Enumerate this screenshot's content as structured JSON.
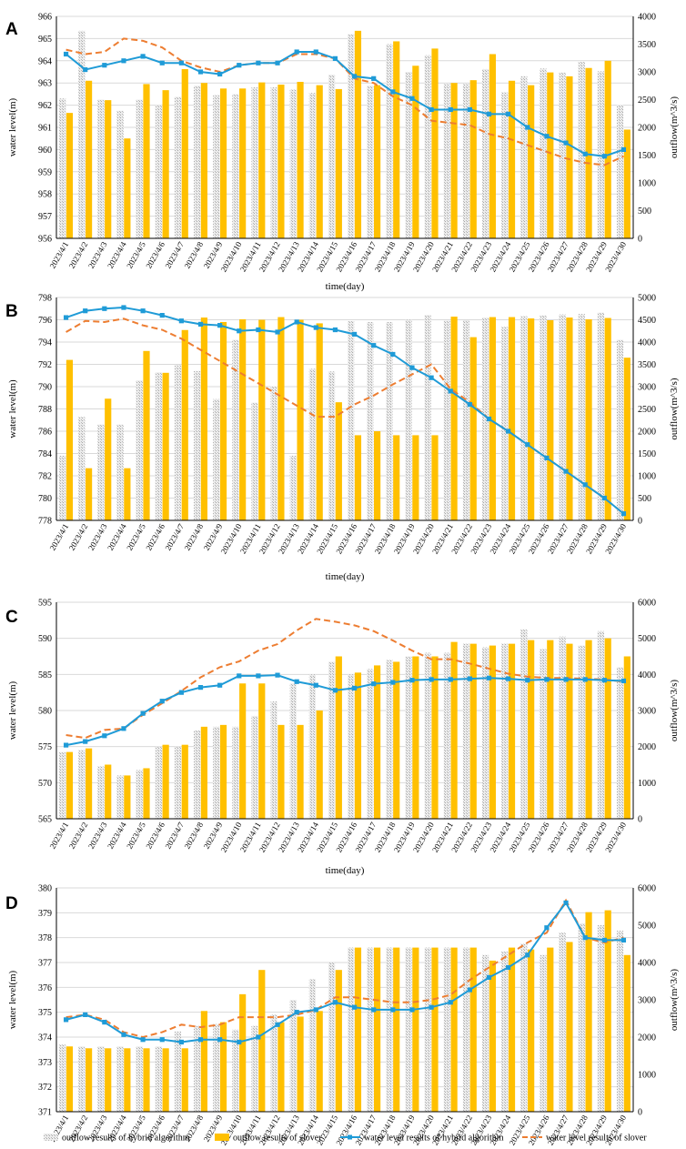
{
  "colors": {
    "hybrid_bar": "#d2d2d2",
    "solver_bar": "#ffc000",
    "hybrid_line": "#1f9bd7",
    "solver_line": "#ed7d31"
  },
  "legend": [
    {
      "key": "hybrid_outflow",
      "label": "outflow results of hybrid algorithm"
    },
    {
      "key": "solver_outflow",
      "label": "outflow results of slover"
    },
    {
      "key": "hybrid_level",
      "label": "water level results of hybrid algorithm"
    },
    {
      "key": "solver_level",
      "label": "water level results of slover"
    }
  ],
  "chart_data": [
    {
      "panel": "A",
      "type": "bar",
      "xlabel": "time(day)",
      "ylabel": "water level(m)",
      "y2label": "outflow(m^3/s)",
      "ylim": [
        956,
        966
      ],
      "y2lim": [
        0,
        4000
      ],
      "yticks": [
        956,
        957,
        958,
        959,
        960,
        961,
        962,
        963,
        964,
        965,
        966
      ],
      "y2ticks": [
        0,
        500,
        1000,
        1500,
        2000,
        2500,
        3000,
        3500,
        4000
      ],
      "categories": [
        "2023/4/1",
        "2023/4/2",
        "2023/4/3",
        "2023/4/4",
        "2023/4/5",
        "2023/4/6",
        "2023/4/7",
        "2023/4/8",
        "2023/4/9",
        "2023/4/10",
        "2023/4/11",
        "2023/4/12",
        "2023/4/13",
        "2023/4/14",
        "2023/4/15",
        "2023/4/16",
        "2023/4/17",
        "2023/4/18",
        "2023/4/19",
        "2023/4/20",
        "2023/4/21",
        "2023/4/22",
        "2023/4/23",
        "2023/4/24",
        "2023/4/25",
        "2023/4/26",
        "2023/4/27",
        "2023/4/28",
        "2023/4/29",
        "2023/4/30"
      ],
      "series": [
        {
          "name": "outflow results of hybrid algorithm",
          "axis": "right",
          "values": [
            2520,
            3740,
            2500,
            2300,
            2500,
            2400,
            2550,
            2750,
            2580,
            2600,
            2720,
            2720,
            2680,
            2620,
            2950,
            3680,
            2750,
            3500,
            3000,
            3300,
            2780,
            2780,
            3050,
            2630,
            2920,
            3060,
            2990,
            3180,
            3010,
            2410
          ]
        },
        {
          "name": "outflow results of slover",
          "axis": "right",
          "values": [
            2260,
            2840,
            2490,
            1800,
            2780,
            2670,
            3050,
            2800,
            2700,
            2700,
            2810,
            2770,
            2820,
            2760,
            2690,
            3740,
            2760,
            3550,
            3110,
            3420,
            2800,
            2850,
            3320,
            2840,
            2760,
            2990,
            2920,
            3070,
            3200,
            1960
          ]
        },
        {
          "name": "water level results of hybrid algorithm",
          "axis": "left",
          "values": [
            964.3,
            963.6,
            963.8,
            964.0,
            964.2,
            963.9,
            963.9,
            963.5,
            963.4,
            963.8,
            963.9,
            963.9,
            964.4,
            964.4,
            964.1,
            963.3,
            963.2,
            962.6,
            962.3,
            961.8,
            961.8,
            961.8,
            961.6,
            961.6,
            961.0,
            960.6,
            960.3,
            959.8,
            959.7,
            960.0
          ]
        },
        {
          "name": "water level results of slover",
          "axis": "left",
          "values": [
            964.5,
            964.3,
            964.4,
            965.0,
            964.9,
            964.6,
            964.0,
            963.7,
            963.5,
            963.8,
            963.9,
            963.9,
            964.3,
            964.3,
            964.1,
            963.2,
            963.0,
            962.4,
            962.0,
            961.3,
            961.2,
            961.1,
            960.7,
            960.5,
            960.2,
            959.9,
            959.6,
            959.4,
            959.3,
            959.7
          ]
        }
      ]
    },
    {
      "panel": "B",
      "type": "bar",
      "xlabel": "time(day)",
      "ylabel": "water level(m)",
      "y2label": "outflow(m^3/s)",
      "ylim": [
        778,
        798
      ],
      "y2lim": [
        0,
        5000
      ],
      "yticks": [
        778,
        780,
        782,
        784,
        786,
        788,
        790,
        792,
        794,
        796,
        798
      ],
      "y2ticks": [
        0,
        500,
        1000,
        1500,
        2000,
        2500,
        3000,
        3500,
        4000,
        4500,
        5000
      ],
      "categories": [
        "2023/4/1",
        "2023/4/2",
        "2023/4/3",
        "2023/4/4",
        "2023/4/5",
        "2023/4/6",
        "2023/4/7",
        "2023/4/8",
        "2023/4/9",
        "2023/4/10",
        "2023/4/11",
        "2023/4/12",
        "2023/4/13",
        "2023/4/14",
        "2023/4/15",
        "2023/4/16",
        "2023/4/17",
        "2023/4/18",
        "2023/4/19",
        "2023/4/20",
        "2023/4/21",
        "2023/4/22",
        "2023/4/23",
        "2023/4/24",
        "2023/4/25",
        "2023/4/26",
        "2023/4/27",
        "2023/4/28",
        "2023/4/29",
        "2023/4/30"
      ],
      "series": [
        {
          "name": "outflow results of hybrid algorithm",
          "axis": "right",
          "values": [
            1450,
            2320,
            2150,
            2150,
            3140,
            3320,
            3480,
            3350,
            2720,
            4050,
            2640,
            3010,
            1450,
            3400,
            3340,
            4470,
            4450,
            4450,
            4500,
            4610,
            4480,
            4490,
            4550,
            4340,
            4580,
            4600,
            4620,
            4630,
            4660,
            4050
          ]
        },
        {
          "name": "outflow results of slover",
          "axis": "right",
          "values": [
            3600,
            1170,
            2730,
            1170,
            3800,
            3310,
            4270,
            4550,
            4450,
            4510,
            4500,
            4560,
            4500,
            4420,
            2650,
            1910,
            2000,
            1910,
            1910,
            1910,
            4570,
            4110,
            4560,
            4560,
            4530,
            4490,
            4550,
            4510,
            4540,
            3650
          ]
        },
        {
          "name": "water level results of hybrid algorithm",
          "axis": "left",
          "values": [
            796.2,
            796.8,
            797.0,
            797.1,
            796.8,
            796.4,
            795.9,
            795.6,
            795.5,
            795.0,
            795.1,
            794.9,
            795.8,
            795.3,
            795.1,
            794.7,
            793.7,
            792.9,
            791.7,
            790.8,
            789.6,
            788.4,
            787.1,
            786.0,
            784.8,
            783.6,
            782.4,
            781.2,
            780.0,
            778.6
          ]
        },
        {
          "name": "water level results of slover",
          "axis": "left",
          "values": [
            794.9,
            795.9,
            795.8,
            796.1,
            795.5,
            795.1,
            794.3,
            793.3,
            792.3,
            791.3,
            790.3,
            789.3,
            788.3,
            787.3,
            787.3,
            788.4,
            789.2,
            790.2,
            791.1,
            792.0,
            789.8,
            788.6,
            787.1,
            786.0,
            784.8,
            783.6,
            782.4,
            781.2,
            780.0,
            778.6
          ]
        }
      ]
    },
    {
      "panel": "C",
      "type": "bar",
      "xlabel": "time(day)",
      "ylabel": "water level(m)",
      "y2label": "outflow(m^3/s)",
      "ylim": [
        565,
        595
      ],
      "y2lim": [
        0,
        6000
      ],
      "yticks": [
        565,
        570,
        575,
        580,
        585,
        590,
        595
      ],
      "y2ticks": [
        0,
        1000,
        2000,
        3000,
        4000,
        5000,
        6000
      ],
      "categories": [
        "2023/4/1",
        "2023/4/2",
        "2023/4/3",
        "2023/4/4",
        "2023/4/5",
        "2023/4/6",
        "2023/4/7",
        "2023/4/8",
        "2023/4/9",
        "2023/4/10",
        "2023/4/11",
        "2023/4/12",
        "2023/4/13",
        "2023/4/14",
        "2023/4/15",
        "2023/4/16",
        "2023/4/17",
        "2023/4/18",
        "2023/4/19",
        "2023/4/20",
        "2023/4/21",
        "2023/4/22",
        "2023/4/23",
        "2023/4/24",
        "2023/4/25",
        "2023/4/26",
        "2023/4/27",
        "2023/4/28",
        "2023/4/29",
        "2023/4/30"
      ],
      "series": [
        {
          "name": "outflow results of hybrid algorithm",
          "axis": "right",
          "values": [
            1850,
            1900,
            1450,
            1200,
            1350,
            2000,
            2000,
            2450,
            2550,
            2550,
            2850,
            3250,
            3750,
            4000,
            4350,
            4000,
            4150,
            4400,
            4500,
            4600,
            4600,
            4850,
            4750,
            4850,
            5250,
            4700,
            5050,
            4800,
            5200,
            4200
          ]
        },
        {
          "name": "outflow results of slover",
          "axis": "right",
          "values": [
            1850,
            1950,
            1500,
            1200,
            1400,
            2050,
            2050,
            2550,
            2600,
            3750,
            3750,
            2600,
            2600,
            3000,
            4500,
            4050,
            4250,
            4350,
            4500,
            4500,
            4900,
            4850,
            4800,
            4850,
            4950,
            4950,
            4850,
            4950,
            5000,
            4500
          ]
        },
        {
          "name": "water level results of hybrid algorithm",
          "axis": "left",
          "values": [
            575.2,
            575.7,
            576.5,
            577.5,
            579.6,
            581.3,
            582.5,
            583.2,
            583.5,
            584.8,
            584.8,
            584.9,
            584.0,
            583.5,
            582.8,
            583.1,
            583.7,
            583.9,
            584.2,
            584.3,
            584.3,
            584.4,
            584.5,
            584.4,
            584.2,
            584.3,
            584.3,
            584.3,
            584.2,
            584.1
          ]
        },
        {
          "name": "water level results of slover",
          "axis": "left",
          "values": [
            576.6,
            576.2,
            577.3,
            577.5,
            579.4,
            581.0,
            582.7,
            584.6,
            586.0,
            586.8,
            588.3,
            589.2,
            591.1,
            592.7,
            592.3,
            591.8,
            591.0,
            589.7,
            588.3,
            587.1,
            587.1,
            586.5,
            585.8,
            585.1,
            584.7,
            584.5,
            584.5,
            584.4,
            584.3,
            584.0
          ]
        }
      ]
    },
    {
      "panel": "D",
      "type": "bar",
      "xlabel": "",
      "ylabel": "water level(m)",
      "y2label": "outflow(m^3/s)",
      "ylim": [
        371,
        380
      ],
      "y2lim": [
        0,
        6000
      ],
      "yticks": [
        371,
        372,
        373,
        374,
        375,
        376,
        377,
        378,
        379,
        380
      ],
      "y2ticks": [
        0,
        1000,
        2000,
        3000,
        4000,
        5000,
        6000
      ],
      "categories": [
        "2023/4/1",
        "2023/4/2",
        "2023/4/3",
        "2023/4/4",
        "2023/4/5",
        "2023/4/6",
        "2023/4/7",
        "2023/4/8",
        "2023/4/9",
        "2023/4/10",
        "2023/4/11",
        "2023/4/12",
        "2023/4/13",
        "2023/4/14",
        "2023/4/15",
        "2023/4/16",
        "2023/4/17",
        "2023/4/18",
        "2023/4/19",
        "2023/4/20",
        "2023/4/21",
        "2023/4/22",
        "2023/4/23",
        "2023/4/24",
        "2023/4/25",
        "2023/4/26",
        "2023/4/27",
        "2023/4/28",
        "2023/4/29",
        "2023/4/30"
      ],
      "series": [
        {
          "name": "outflow results of hybrid algorithm",
          "axis": "right",
          "values": [
            1800,
            1750,
            1750,
            1750,
            1750,
            1750,
            2150,
            2300,
            2350,
            2200,
            2300,
            2600,
            3000,
            3550,
            4000,
            4400,
            4400,
            4400,
            4400,
            4400,
            4400,
            4400,
            4200,
            4300,
            4500,
            4200,
            4800,
            5050,
            5000,
            4850
          ]
        },
        {
          "name": "outflow results of slover",
          "axis": "right",
          "values": [
            1750,
            1700,
            1700,
            1700,
            1700,
            1700,
            1700,
            2700,
            2400,
            3150,
            3800,
            2400,
            2550,
            2700,
            3800,
            4400,
            4400,
            4400,
            4400,
            4400,
            4400,
            4400,
            4050,
            4400,
            4350,
            4400,
            4550,
            5350,
            5400,
            4200
          ]
        },
        {
          "name": "water level results of hybrid algorithm",
          "axis": "left",
          "values": [
            374.7,
            374.9,
            374.6,
            374.1,
            373.9,
            373.9,
            373.8,
            373.9,
            373.9,
            373.8,
            374.0,
            374.5,
            375.0,
            375.1,
            375.4,
            375.2,
            375.1,
            375.1,
            375.1,
            375.2,
            375.4,
            375.9,
            376.4,
            376.8,
            377.3,
            378.4,
            379.4,
            378.0,
            377.9,
            377.9
          ]
        },
        {
          "name": "water level results of slover",
          "axis": "left",
          "values": [
            374.8,
            374.9,
            374.7,
            374.2,
            374.0,
            374.2,
            374.5,
            374.4,
            374.5,
            374.8,
            374.8,
            374.8,
            374.9,
            375.1,
            375.6,
            375.6,
            375.5,
            375.4,
            375.4,
            375.5,
            375.7,
            376.3,
            376.8,
            377.3,
            377.8,
            378.2,
            379.5,
            378.0,
            377.8,
            378.0
          ]
        }
      ]
    }
  ]
}
